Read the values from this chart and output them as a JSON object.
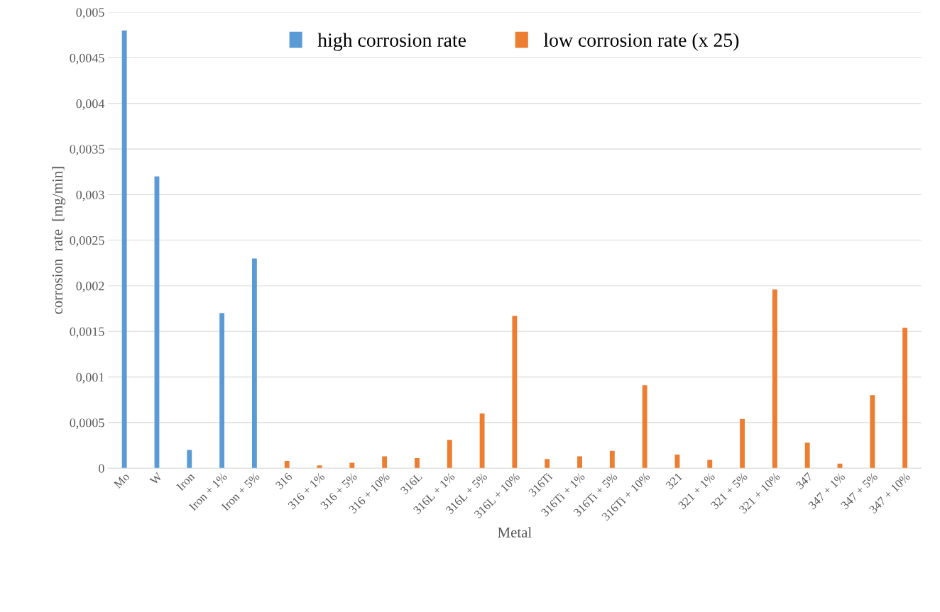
{
  "chart_data": {
    "type": "bar",
    "xlabel": "Metal",
    "ylabel": "corrosion  rate  [mg/min]",
    "categories": [
      "Mo",
      "W",
      "Iron",
      "Iron + 1%",
      "Iron + 5%",
      "316",
      "316 + 1%",
      "316 + 5%",
      "316 + 10%",
      "316L",
      "316L + 1%",
      "316L + 5%",
      "316L + 10%",
      "316Ti",
      "316Ti + 1%",
      "316Ti + 5%",
      "316Ti + 10%",
      "321",
      "321 + 1%",
      "321 + 5%",
      "321 + 10%",
      "347",
      "347 + 1%",
      "347 + 5%",
      "347 + 10%"
    ],
    "series": [
      {
        "name": "high corrosion rate",
        "color": "#5b9bd5",
        "values": [
          0.0048,
          0.0032,
          0.0002,
          0.0017,
          0.0023,
          null,
          null,
          null,
          null,
          null,
          null,
          null,
          null,
          null,
          null,
          null,
          null,
          null,
          null,
          null,
          null,
          null,
          null,
          null,
          null
        ]
      },
      {
        "name": "low corrosion rate (x 25)",
        "color": "#ed7d31",
        "values": [
          null,
          null,
          null,
          null,
          null,
          8e-05,
          3e-05,
          6e-05,
          0.00013,
          0.00011,
          0.00031,
          0.0006,
          0.00167,
          0.0001,
          0.00013,
          0.00019,
          0.00091,
          0.00015,
          9e-05,
          0.00054,
          0.00196,
          0.00028,
          5e-05,
          0.0008,
          0.00154
        ]
      }
    ],
    "ylim": [
      0,
      0.005
    ],
    "yticks": [
      0,
      {
        "value": 0.0005,
        "label": "0,0005"
      },
      {
        "value": 0.001,
        "label": "0,001"
      },
      {
        "value": 0.0015,
        "label": "0,0015"
      },
      {
        "value": 0.002,
        "label": "0,002"
      },
      {
        "value": 0.0025,
        "label": "0,0025"
      },
      {
        "value": 0.003,
        "label": "0,003"
      },
      {
        "value": 0.0035,
        "label": "0,0035"
      },
      {
        "value": 0.004,
        "label": "0,004"
      },
      {
        "value": 0.0045,
        "label": "0,0045"
      },
      {
        "value": 0.005,
        "label": "0,005"
      }
    ],
    "grid": "y",
    "legend": "top"
  }
}
